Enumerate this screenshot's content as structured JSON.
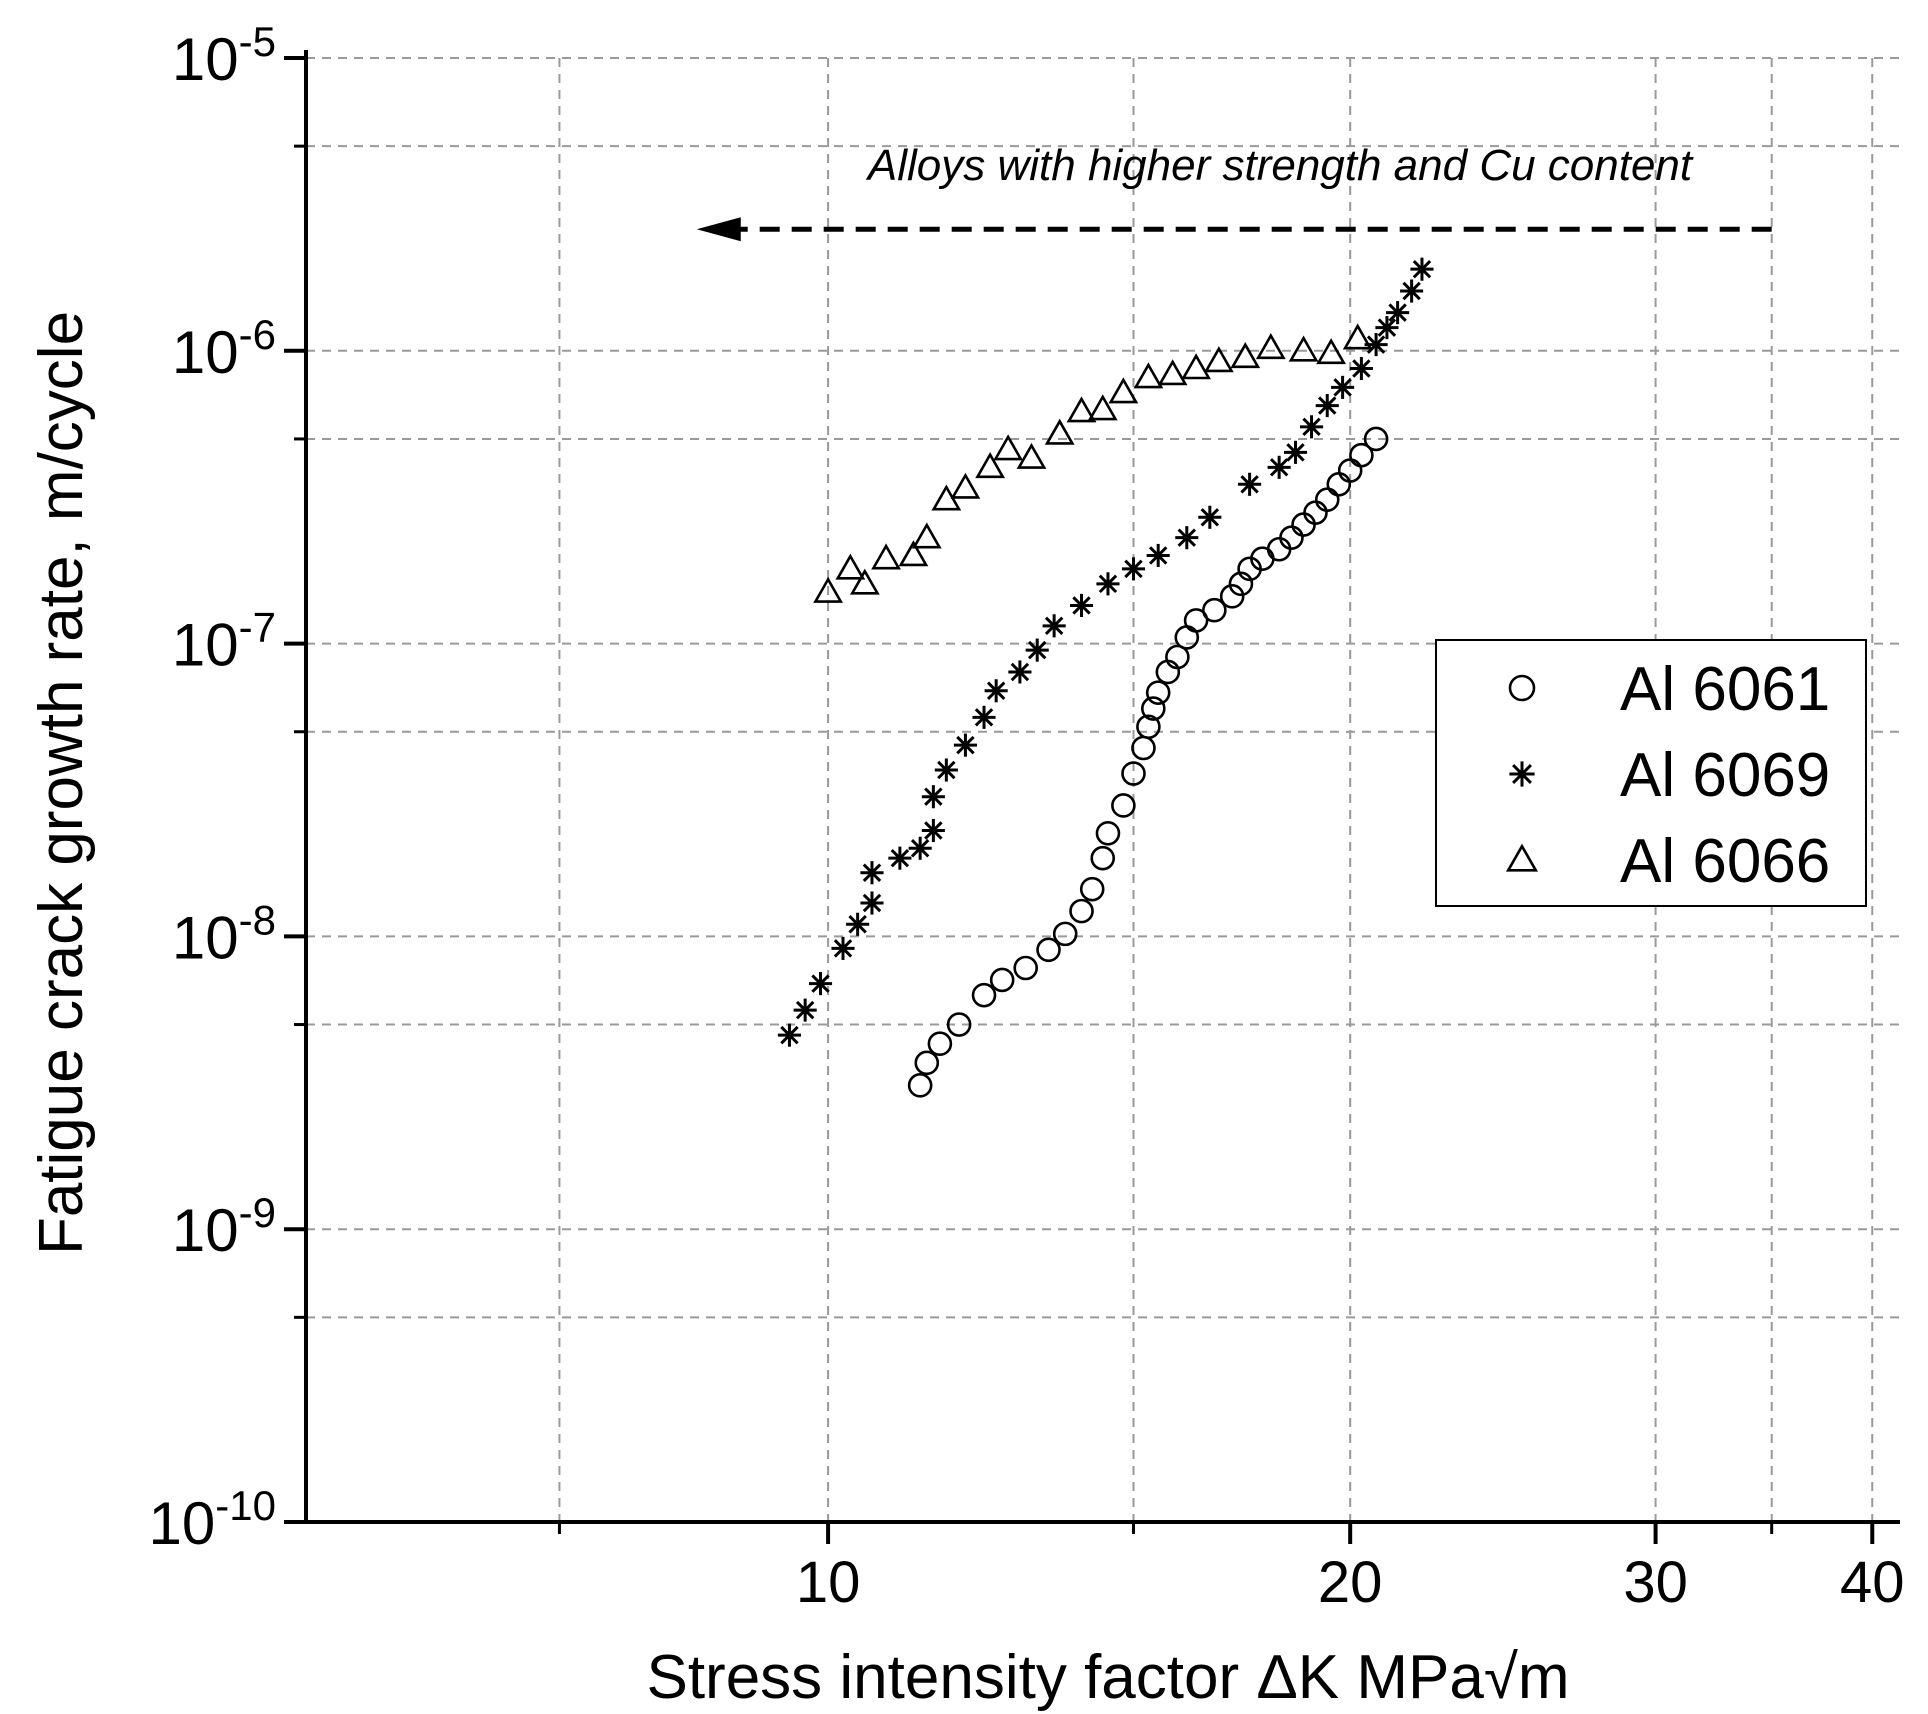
{
  "chart_data": {
    "type": "scatter",
    "x_scale": "log",
    "y_scale": "log",
    "xlim": [
      5,
      41.5
    ],
    "ylim": [
      1e-10,
      1e-05
    ],
    "xlabel": "Stress intensity factor ΔK MPa√m",
    "ylabel": "Fatigue crack growth rate, m/cycle",
    "x_ticks": [
      {
        "value": 10,
        "label": "10"
      },
      {
        "value": 20,
        "label": "20"
      },
      {
        "value": 30,
        "label": "30"
      },
      {
        "value": 40,
        "label": "40"
      }
    ],
    "x_minor_ticks": [
      7,
      15,
      35
    ],
    "y_ticks": [
      {
        "value": 1e-10,
        "base": "10",
        "exp": "-10"
      },
      {
        "value": 1e-09,
        "base": "10",
        "exp": "-9"
      },
      {
        "value": 1e-08,
        "base": "10",
        "exp": "-8"
      },
      {
        "value": 1e-07,
        "base": "10",
        "exp": "-7"
      },
      {
        "value": 1e-06,
        "base": "10",
        "exp": "-6"
      },
      {
        "value": 1e-05,
        "base": "10",
        "exp": "-5"
      }
    ],
    "grid": true,
    "legend_position": "right-middle",
    "annotation": {
      "text": "Alloys with higher strength and Cu content",
      "arrow_from_x": 35,
      "arrow_to_x": 8.4,
      "arrow_y": 2.6e-06
    },
    "series": [
      {
        "name": "Al 6061",
        "marker": "circle",
        "points": [
          [
            11.3,
            3.1e-09
          ],
          [
            11.4,
            3.7e-09
          ],
          [
            11.6,
            4.3e-09
          ],
          [
            11.9,
            5e-09
          ],
          [
            12.3,
            6.3e-09
          ],
          [
            12.6,
            7.1e-09
          ],
          [
            13.0,
            7.8e-09
          ],
          [
            13.4,
            9e-09
          ],
          [
            13.7,
            1.02e-08
          ],
          [
            14.0,
            1.22e-08
          ],
          [
            14.2,
            1.45e-08
          ],
          [
            14.4,
            1.85e-08
          ],
          [
            14.5,
            2.25e-08
          ],
          [
            14.8,
            2.8e-08
          ],
          [
            15.0,
            3.6e-08
          ],
          [
            15.2,
            4.4e-08
          ],
          [
            15.3,
            5.2e-08
          ],
          [
            15.4,
            6e-08
          ],
          [
            15.5,
            6.8e-08
          ],
          [
            15.7,
            8e-08
          ],
          [
            15.9,
            9e-08
          ],
          [
            16.1,
            1.05e-07
          ],
          [
            16.3,
            1.2e-07
          ],
          [
            16.7,
            1.3e-07
          ],
          [
            17.1,
            1.45e-07
          ],
          [
            17.3,
            1.6e-07
          ],
          [
            17.5,
            1.8e-07
          ],
          [
            17.8,
            1.95e-07
          ],
          [
            18.2,
            2.1e-07
          ],
          [
            18.5,
            2.3e-07
          ],
          [
            18.8,
            2.55e-07
          ],
          [
            19.1,
            2.8e-07
          ],
          [
            19.4,
            3.1e-07
          ],
          [
            19.7,
            3.5e-07
          ],
          [
            20.0,
            3.9e-07
          ],
          [
            20.3,
            4.4e-07
          ],
          [
            20.7,
            5e-07
          ]
        ]
      },
      {
        "name": "Al 6069",
        "marker": "asterisk",
        "points": [
          [
            9.5,
            4.6e-09
          ],
          [
            9.7,
            5.6e-09
          ],
          [
            9.9,
            6.9e-09
          ],
          [
            10.2,
            9.1e-09
          ],
          [
            10.4,
            1.1e-08
          ],
          [
            10.6,
            1.3e-08
          ],
          [
            10.6,
            1.65e-08
          ],
          [
            11.0,
            1.85e-08
          ],
          [
            11.3,
            2e-08
          ],
          [
            11.5,
            2.3e-08
          ],
          [
            11.5,
            3e-08
          ],
          [
            11.7,
            3.7e-08
          ],
          [
            12.0,
            4.5e-08
          ],
          [
            12.3,
            5.6e-08
          ],
          [
            12.5,
            6.9e-08
          ],
          [
            12.9,
            8e-08
          ],
          [
            13.2,
            9.5e-08
          ],
          [
            13.5,
            1.15e-07
          ],
          [
            14.0,
            1.35e-07
          ],
          [
            14.5,
            1.6e-07
          ],
          [
            15.0,
            1.8e-07
          ],
          [
            15.5,
            2e-07
          ],
          [
            16.1,
            2.3e-07
          ],
          [
            16.6,
            2.7e-07
          ],
          [
            17.5,
            3.5e-07
          ],
          [
            18.2,
            4e-07
          ],
          [
            18.6,
            4.5e-07
          ],
          [
            19.0,
            5.5e-07
          ],
          [
            19.4,
            6.5e-07
          ],
          [
            19.8,
            7.5e-07
          ],
          [
            20.3,
            8.7e-07
          ],
          [
            20.7,
            1.05e-06
          ],
          [
            21.0,
            1.2e-06
          ],
          [
            21.3,
            1.35e-06
          ],
          [
            21.7,
            1.6e-06
          ],
          [
            22.0,
            1.9e-06
          ]
        ]
      },
      {
        "name": "Al 6066",
        "marker": "triangle",
        "points": [
          [
            10.0,
            1.5e-07
          ],
          [
            10.3,
            1.8e-07
          ],
          [
            10.5,
            1.6e-07
          ],
          [
            10.8,
            1.95e-07
          ],
          [
            11.2,
            2e-07
          ],
          [
            11.4,
            2.3e-07
          ],
          [
            11.7,
            3.1e-07
          ],
          [
            12.0,
            3.4e-07
          ],
          [
            12.4,
            4e-07
          ],
          [
            12.7,
            4.6e-07
          ],
          [
            13.1,
            4.3e-07
          ],
          [
            13.6,
            5.2e-07
          ],
          [
            14.0,
            6.2e-07
          ],
          [
            14.4,
            6.3e-07
          ],
          [
            14.8,
            7.2e-07
          ],
          [
            15.3,
            8.1e-07
          ],
          [
            15.8,
            8.3e-07
          ],
          [
            16.3,
            8.7e-07
          ],
          [
            16.8,
            9.2e-07
          ],
          [
            17.4,
            9.5e-07
          ],
          [
            18.0,
            1.02e-06
          ],
          [
            18.8,
            1e-06
          ],
          [
            19.5,
            9.8e-07
          ],
          [
            20.2,
            1.1e-06
          ]
        ]
      }
    ]
  }
}
